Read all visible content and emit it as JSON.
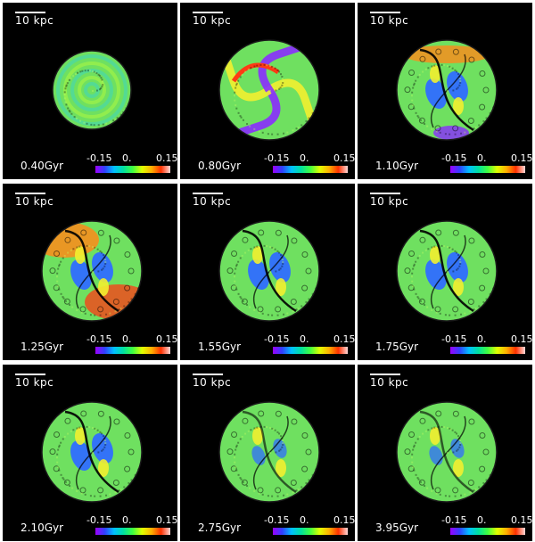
{
  "scale": {
    "label": "10 kpc"
  },
  "colorbar": {
    "ticks": [
      "-0.15",
      "0.",
      "0.15"
    ]
  },
  "panels": [
    {
      "time": "0.40Gyr",
      "pattern": "rings"
    },
    {
      "time": "0.80Gyr",
      "pattern": "spiral"
    },
    {
      "time": "1.10Gyr",
      "pattern": "bar"
    },
    {
      "time": "1.25Gyr",
      "pattern": "bar-strong"
    },
    {
      "time": "1.55Gyr",
      "pattern": "bar"
    },
    {
      "time": "1.75Gyr",
      "pattern": "bar"
    },
    {
      "time": "2.10Gyr",
      "pattern": "bar"
    },
    {
      "time": "2.75Gyr",
      "pattern": "weak"
    },
    {
      "time": "3.95Gyr",
      "pattern": "weak"
    }
  ],
  "colors": {
    "background": "#000000",
    "base": "#6fe060",
    "violet": "#8a2cff",
    "blue": "#2f6dff",
    "yellow": "#f2f030",
    "orange": "#ff8a1a",
    "red": "#ff3a14"
  }
}
